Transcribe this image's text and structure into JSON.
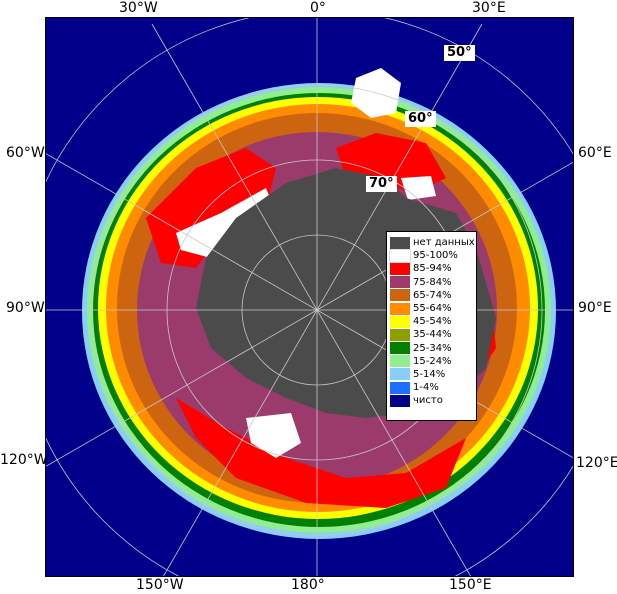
{
  "map": {
    "longitude_labels": {
      "lon_30w": "30°W",
      "lon_0": "0°",
      "lon_30e": "30°E",
      "lon_60w": "60°W",
      "lon_60e": "60°E",
      "lon_90w": "90°W",
      "lon_90e": "90°E",
      "lon_120w": "120°W",
      "lon_120e": "120°E",
      "lon_150w": "150°W",
      "lon_180": "180°",
      "lon_150e": "150°E"
    },
    "latitude_labels": {
      "lat_50": "50°",
      "lat_60": "60°",
      "lat_70": "70°"
    },
    "colors": {
      "open_water": "#00008b",
      "no_data": "#4b4b4b",
      "grid": "#c8c8c8",
      "ice_95_100": "#ffffff",
      "ice_85_94": "#ff0000",
      "ice_75_84": "#9b3b6b",
      "ice_65_74": "#cd6410",
      "ice_55_64": "#ff8c00",
      "ice_45_54": "#ffff00",
      "ice_35_44": "#8ca000",
      "ice_25_34": "#008000",
      "ice_15_24": "#90ee90",
      "ice_5_14": "#87cefa",
      "ice_1_4": "#1e6eff"
    }
  },
  "legend": {
    "items": [
      {
        "label": "нет данных",
        "color": "#4b4b4b"
      },
      {
        "label": "95-100%",
        "color": "#ffffff"
      },
      {
        "label": "85-94%",
        "color": "#ff0000"
      },
      {
        "label": "75-84%",
        "color": "#9b3b6b"
      },
      {
        "label": "65-74%",
        "color": "#cd6410"
      },
      {
        "label": "55-64%",
        "color": "#ff8c00"
      },
      {
        "label": "45-54%",
        "color": "#ffff00"
      },
      {
        "label": "35-44%",
        "color": "#8ca000"
      },
      {
        "label": "25-34%",
        "color": "#008000"
      },
      {
        "label": "15-24%",
        "color": "#90ee90"
      },
      {
        "label": "5-14%",
        "color": "#87cefa"
      },
      {
        "label": "1-4%",
        "color": "#1e6eff"
      },
      {
        "label": "чисто",
        "color": "#00008b"
      }
    ]
  }
}
